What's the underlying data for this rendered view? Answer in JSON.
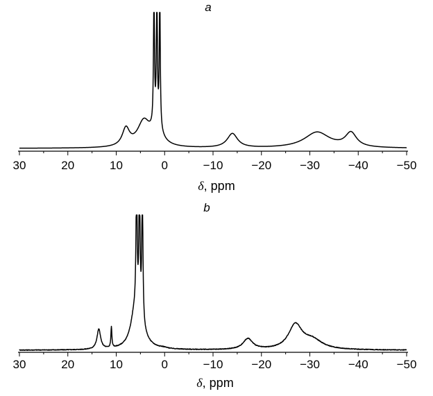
{
  "chart_data": [
    {
      "type": "line",
      "panel_label": "a",
      "title": "",
      "xlabel_symbol": "δ",
      "xlabel_unit": ", ppm",
      "xlim": [
        30,
        -50
      ],
      "x_reversed": true,
      "ylim": [
        0,
        1
      ],
      "yaxis_visible": false,
      "grid": false,
      "legend": "none",
      "xticks": [
        30,
        20,
        10,
        0,
        -10,
        -20,
        -30,
        -40,
        -50
      ],
      "xtick_labels": [
        "30",
        "20",
        "10",
        "0",
        "−10",
        "−20",
        "−30",
        "−40",
        "−50"
      ],
      "baseline_slope": 0.04,
      "peaks": [
        {
          "x": 8.0,
          "height": 0.21,
          "width": 0.9
        },
        {
          "x": 4.3,
          "height": 0.3,
          "width": 1.6
        },
        {
          "x": 2.2,
          "height": 1.6,
          "width": 0.12
        },
        {
          "x": 1.6,
          "height": 1.6,
          "width": 0.12
        },
        {
          "x": 1.0,
          "height": 1.6,
          "width": 0.12
        },
        {
          "x": 1.6,
          "height": 0.18,
          "width": 1.4
        },
        {
          "x": -14.0,
          "height": 0.17,
          "width": 1.3
        },
        {
          "x": -31.5,
          "height": 0.19,
          "width": 3.2
        },
        {
          "x": -38.5,
          "height": 0.17,
          "width": 1.4
        }
      ]
    },
    {
      "type": "line",
      "panel_label": "b",
      "title": "",
      "xlabel_symbol": "δ",
      "xlabel_unit": ", ppm",
      "xlim": [
        30,
        -50
      ],
      "x_reversed": true,
      "ylim": [
        0,
        1
      ],
      "yaxis_visible": false,
      "grid": false,
      "legend": "none",
      "xticks": [
        30,
        20,
        10,
        0,
        -10,
        -20,
        -30,
        -40,
        -50
      ],
      "xtick_labels": [
        "30",
        "20",
        "10",
        "0",
        "−10",
        "−20",
        "−30",
        "−40",
        "−50"
      ],
      "baseline_slope": 0.0,
      "noise": 0.004,
      "peaks": [
        {
          "x": 13.6,
          "height": 0.24,
          "width": 0.45
        },
        {
          "x": 11.0,
          "height": 0.25,
          "width": 0.12
        },
        {
          "x": 6.3,
          "height": 0.26,
          "width": 0.9
        },
        {
          "x": 5.8,
          "height": 1.6,
          "width": 0.14
        },
        {
          "x": 5.2,
          "height": 1.6,
          "width": 0.14
        },
        {
          "x": 4.6,
          "height": 1.6,
          "width": 0.14
        },
        {
          "x": 5.3,
          "height": 0.28,
          "width": 1.5
        },
        {
          "x": 0.3,
          "height": 0.01,
          "width": 1.0
        },
        {
          "x": -17.2,
          "height": 0.13,
          "width": 1.2
        },
        {
          "x": -27.0,
          "height": 0.29,
          "width": 1.7
        },
        {
          "x": -30.5,
          "height": 0.11,
          "width": 2.5
        }
      ]
    }
  ]
}
